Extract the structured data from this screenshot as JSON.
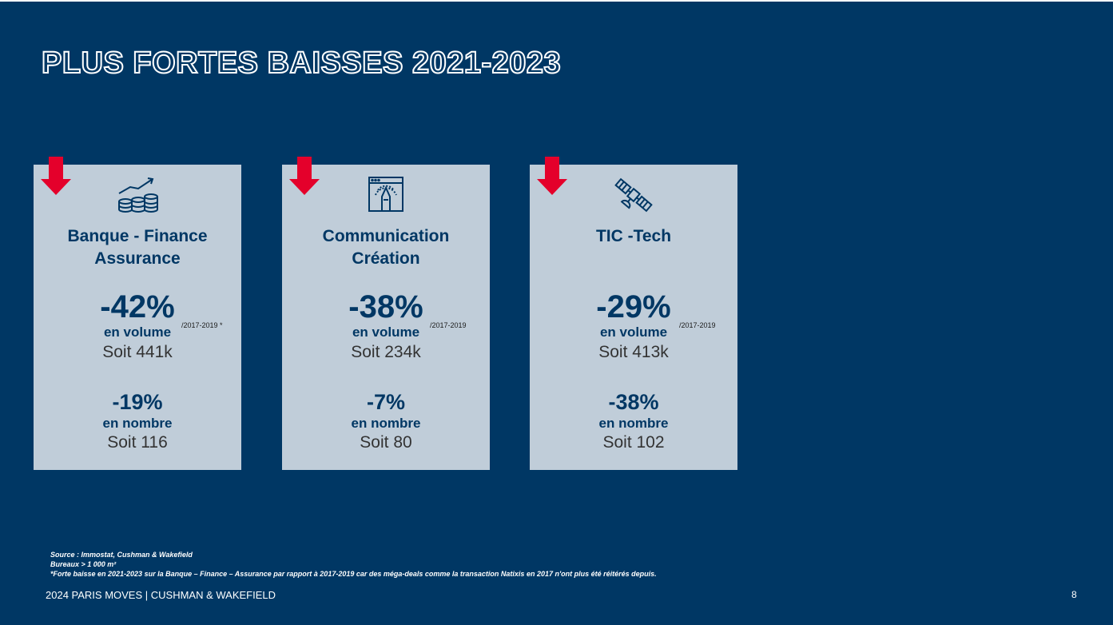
{
  "title": "PLUS FORTES BAISSES 2021-2023",
  "colors": {
    "background": "#003764",
    "card": "#c0cdd9",
    "arrow": "#e4002b",
    "text": "#003764"
  },
  "cards": [
    {
      "icon": "coins-growth-icon",
      "sector_line1": "Banque - Finance",
      "sector_line2": "Assurance",
      "volume_pct": "-42%",
      "volume_label": "en volume",
      "volume_ref": "/2017-2019 *",
      "volume_soit": "Soit 441k",
      "count_pct": "-19%",
      "count_label": "en nombre",
      "count_soit": "Soit 116"
    },
    {
      "icon": "creative-window-icon",
      "sector_line1": "Communication",
      "sector_line2": "Création",
      "volume_pct": "-38%",
      "volume_label": "en volume",
      "volume_ref": "/2017-2019",
      "volume_soit": "Soit 234k",
      "count_pct": "-7%",
      "count_label": "en nombre",
      "count_soit": "Soit 80"
    },
    {
      "icon": "satellite-icon",
      "sector_line1": "TIC -Tech",
      "sector_line2": "",
      "volume_pct": "-29%",
      "volume_label": "en volume",
      "volume_ref": "/2017-2019",
      "volume_soit": "Soit 413k",
      "count_pct": "-38%",
      "count_label": "en nombre",
      "count_soit": "Soit 102"
    }
  ],
  "notes": {
    "line1": "Source : Immostat, Cushman & Wakefield",
    "line2": "Bureaux > 1 000 m²",
    "line3": "*Forte baisse en 2021-2023 sur la Banque – Finance – Assurance par rapport à 2017-2019 car des méga-deals comme la transaction Natixis en 2017 n'ont plus été réitérés depuis."
  },
  "footer": {
    "left": "2024 PARIS MOVES | CUSHMAN & WAKEFIELD",
    "page_number": "8"
  }
}
